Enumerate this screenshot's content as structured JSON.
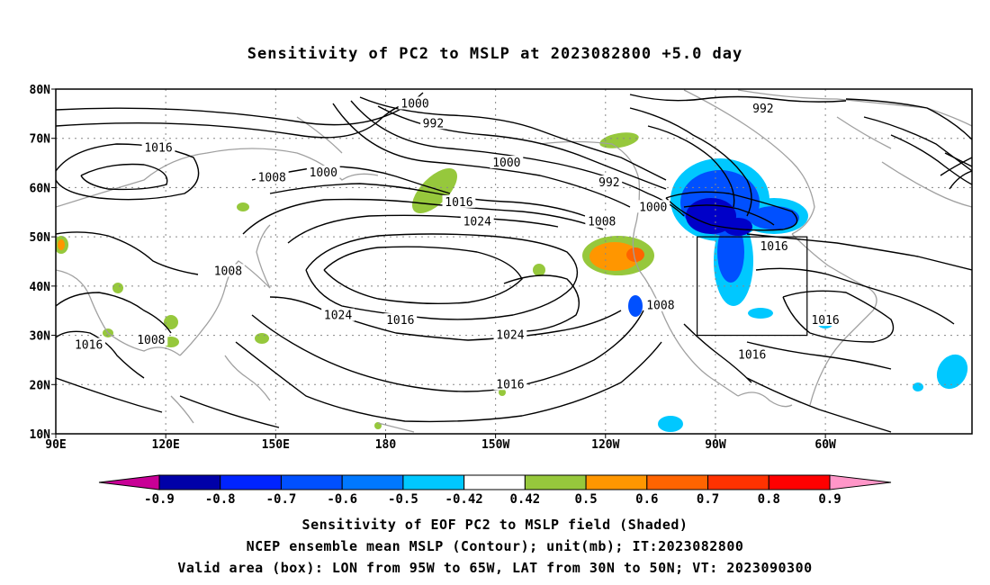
{
  "title": "Sensitivity of PC2 to MSLP at 2023082800 +5.0 day",
  "map": {
    "lat_labels": [
      "80N",
      "70N",
      "60N",
      "50N",
      "40N",
      "30N",
      "20N",
      "10N"
    ],
    "lon_labels": [
      "90E",
      "120E",
      "150E",
      "180",
      "150W",
      "120W",
      "90W",
      "60W"
    ],
    "valid_box": {
      "lon_from": -95,
      "lon_to": -65,
      "lat_from": 30,
      "lat_to": 50
    },
    "contour_labels": [
      {
        "text": "1000",
        "lon": 188,
        "lat": 77
      },
      {
        "text": "992",
        "lon": 193,
        "lat": 73
      },
      {
        "text": "992",
        "lon": 283,
        "lat": 76
      },
      {
        "text": "1016",
        "lon": 118,
        "lat": 68
      },
      {
        "text": "1008",
        "lon": 149,
        "lat": 62
      },
      {
        "text": "1000",
        "lon": 163,
        "lat": 63
      },
      {
        "text": "1000",
        "lon": 213,
        "lat": 65
      },
      {
        "text": "992",
        "lon": 241,
        "lat": 61
      },
      {
        "text": "1016",
        "lon": 200,
        "lat": 57
      },
      {
        "text": "1024",
        "lon": 205,
        "lat": 53
      },
      {
        "text": "1000",
        "lon": 253,
        "lat": 56
      },
      {
        "text": "1008",
        "lon": 239,
        "lat": 53
      },
      {
        "text": "1016",
        "lon": 286,
        "lat": 48
      },
      {
        "text": "1008",
        "lon": 137,
        "lat": 43
      },
      {
        "text": "1024",
        "lon": 167,
        "lat": 34
      },
      {
        "text": "1016",
        "lon": 184,
        "lat": 33
      },
      {
        "text": "1024",
        "lon": 214,
        "lat": 30
      },
      {
        "text": "1008",
        "lon": 255,
        "lat": 36
      },
      {
        "text": "1016",
        "lon": 300,
        "lat": 33
      },
      {
        "text": "1016",
        "lon": 99,
        "lat": 28
      },
      {
        "text": "1008",
        "lon": 116,
        "lat": 29
      },
      {
        "text": "1016",
        "lon": 280,
        "lat": 26
      },
      {
        "text": "1016",
        "lon": 214,
        "lat": 20
      }
    ]
  },
  "colorbar": {
    "labels": [
      "-0.9",
      "-0.8",
      "-0.7",
      "-0.6",
      "-0.5",
      "-0.42",
      "0.42",
      "0.5",
      "0.6",
      "0.7",
      "0.8",
      "0.9"
    ],
    "colors": [
      "#0000a8",
      "#0024ff",
      "#0050ff",
      "#0078ff",
      "#00c8ff",
      "#ffffff",
      "#96c83c",
      "#ff9600",
      "#ff6400",
      "#ff3200",
      "#ff0000"
    ],
    "low_end_color": "#c80096",
    "high_end_color": "#ff96c8"
  },
  "shading_colors": {
    "neg_strong": "#0000c8",
    "neg_mid": "#0050ff",
    "neg_light": "#00c8ff",
    "pos_green": "#96c83c",
    "pos_orange": "#ff9600",
    "pos_darkorange": "#ff6400"
  },
  "captions": {
    "line1": "Sensitivity of EOF PC2 to MSLP field (Shaded)",
    "line2": "NCEP ensemble mean MSLP (Contour); unit(mb); IT:2023082800",
    "line3": "Valid area (box): LON from 95W to 65W, LAT from 30N to 50N; VT: 2023090300"
  }
}
